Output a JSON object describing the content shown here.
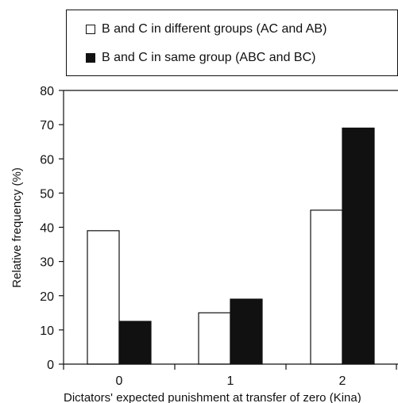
{
  "chart_data": {
    "type": "bar",
    "categories": [
      "0",
      "1",
      "2"
    ],
    "series": [
      {
        "name": "B and C in different groups (AC and AB)",
        "values": [
          39,
          15,
          45
        ],
        "color": "#ffffff"
      },
      {
        "name": "B and C in same group (ABC and BC)",
        "values": [
          12.5,
          19,
          69
        ],
        "color": "#111111"
      }
    ],
    "xlabel": "Dictators' expected punishment at transfer of zero (Kina)",
    "ylabel": "Relative frequency (%)",
    "ylim": [
      0,
      80
    ],
    "yticks": [
      "0",
      "10",
      "20",
      "30",
      "40",
      "50",
      "60",
      "70",
      "80"
    ],
    "grid": false,
    "legend_position": "top-right"
  }
}
